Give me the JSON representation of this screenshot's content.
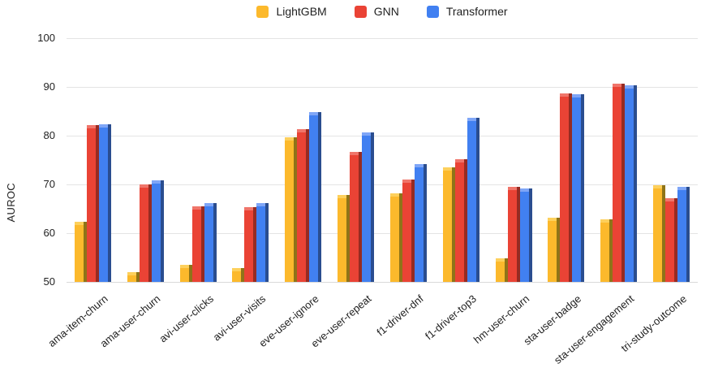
{
  "colors": {
    "background": "#FFFFFF",
    "gridline": "#E4E4E4",
    "axis_baseline": "#D9D9D9",
    "text": "#1F1F1F"
  },
  "chart_data": {
    "type": "bar",
    "title": "",
    "xlabel": "",
    "ylabel": "AUROC",
    "ylim": [
      50,
      100
    ],
    "yticks": [
      100,
      90,
      80,
      70,
      60,
      50
    ],
    "grid": true,
    "legend_position": "top-center",
    "categories": [
      "ama-item-churn",
      "ama-user-churn",
      "avi-user-clicks",
      "avi-user-visits",
      "eve-user-ignore",
      "eve-user-repeat",
      "f1-driver-dnf",
      "f1-driver-top3",
      "hm-user-churn",
      "sta-user-badge",
      "sta-user-engagement",
      "tri-study-outcome"
    ],
    "series": [
      {
        "name": "LightGBM",
        "color": "#FCB92C",
        "color_light": "#FDD05C",
        "color_dark": "#8F7418",
        "values": [
          62.3,
          52.0,
          53.5,
          52.9,
          79.6,
          67.9,
          68.2,
          73.5,
          54.8,
          63.1,
          62.9,
          69.9
        ]
      },
      {
        "name": "GNN",
        "color": "#EA4335",
        "color_light": "#F0756A",
        "color_dark": "#962B22",
        "values": [
          82.2,
          70.0,
          65.5,
          65.4,
          81.4,
          76.7,
          71.0,
          75.2,
          69.5,
          88.7,
          90.7,
          67.1
        ]
      },
      {
        "name": "Transformer",
        "color": "#4180F1",
        "color_light": "#7FA6F7",
        "color_dark": "#2A4D8F",
        "values": [
          82.4,
          70.8,
          66.2,
          66.1,
          84.8,
          80.6,
          74.2,
          83.7,
          69.2,
          88.5,
          90.4,
          69.5
        ]
      }
    ]
  }
}
